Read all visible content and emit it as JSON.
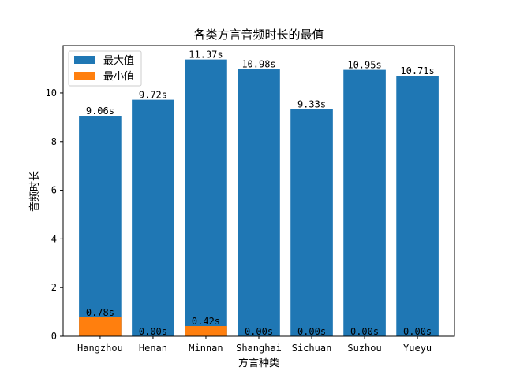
{
  "chart_data": {
    "type": "bar",
    "title": "各类方言音频时长的最值",
    "xlabel": "方言种类",
    "ylabel": "音频时长",
    "categories": [
      "Hangzhou",
      "Henan",
      "Minnan",
      "Shanghai",
      "Sichuan",
      "Suzhou",
      "Yueyu"
    ],
    "series": [
      {
        "name": "最大值",
        "color": "#1f77b4",
        "values": [
          9.06,
          9.72,
          11.37,
          10.98,
          9.33,
          10.95,
          10.71
        ],
        "labels": [
          "9.06s",
          "9.72s",
          "11.37s",
          "10.98s",
          "9.33s",
          "10.95s",
          "10.71s"
        ]
      },
      {
        "name": "最小值",
        "color": "#ff7f0e",
        "values": [
          0.78,
          0.0,
          0.42,
          0.0,
          0.0,
          0.0,
          0.0
        ],
        "labels": [
          "0.78s",
          "0.00s",
          "0.42s",
          "0.00s",
          "0.00s",
          "0.00s",
          "0.00s"
        ]
      }
    ],
    "ylim": [
      0,
      11.94
    ],
    "yticks": [
      0,
      2,
      4,
      6,
      8,
      10
    ],
    "grid": false,
    "legend": "top-left"
  }
}
